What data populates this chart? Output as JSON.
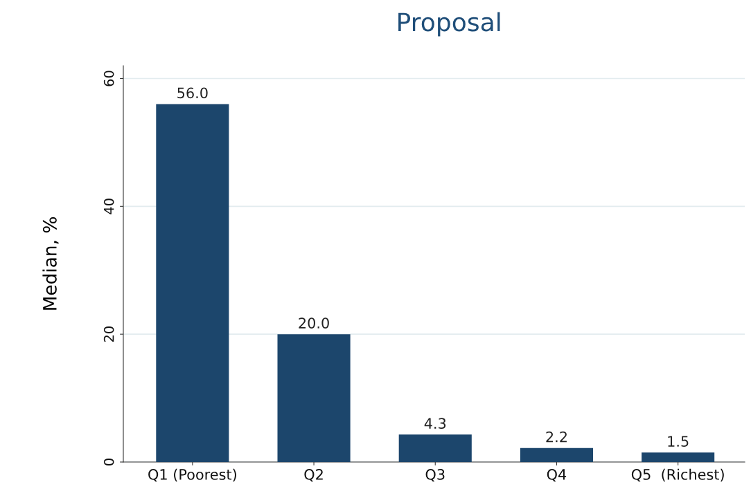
{
  "chart_data": {
    "type": "bar",
    "title": "Proposal",
    "ylabel": "Median, %",
    "categories": [
      "Q1 (Poorest)",
      "Q2",
      "Q3",
      "Q4",
      "Q5  (Richest)"
    ],
    "values": [
      56.0,
      20.0,
      4.3,
      2.2,
      1.5
    ],
    "value_labels": [
      "56.0",
      "20.0",
      "4.3",
      "2.2",
      "1.5"
    ],
    "color": "#1c466c",
    "ylim": [
      0,
      62
    ],
    "yticks": [
      0,
      20,
      40,
      60
    ],
    "grid": "y"
  }
}
